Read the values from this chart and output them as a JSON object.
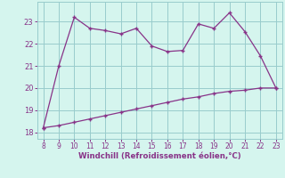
{
  "xlabel": "Windchill (Refroidissement éolien,°C)",
  "x_upper": [
    8,
    9,
    10,
    11,
    12,
    13,
    14,
    15,
    16,
    17,
    18,
    19,
    20,
    21,
    22,
    23
  ],
  "y_upper": [
    18.2,
    21.0,
    23.2,
    22.7,
    22.6,
    22.45,
    22.7,
    21.9,
    21.65,
    21.7,
    22.9,
    22.7,
    23.4,
    22.55,
    21.45,
    20.0
  ],
  "x_lower": [
    8,
    9,
    10,
    11,
    12,
    13,
    14,
    15,
    16,
    17,
    18,
    19,
    20,
    21,
    22,
    23
  ],
  "y_lower": [
    18.2,
    18.3,
    18.45,
    18.6,
    18.75,
    18.9,
    19.05,
    19.2,
    19.35,
    19.5,
    19.6,
    19.75,
    19.85,
    19.9,
    20.0,
    20.0
  ],
  "line_color": "#883388",
  "bg_color": "#d5f5ee",
  "grid_color": "#99cccc",
  "axis_label_color": "#883388",
  "tick_color": "#883388",
  "ylim": [
    17.7,
    23.9
  ],
  "xlim": [
    7.6,
    23.4
  ],
  "yticks": [
    18,
    19,
    20,
    21,
    22,
    23
  ],
  "xticks": [
    8,
    9,
    10,
    11,
    12,
    13,
    14,
    15,
    16,
    17,
    18,
    19,
    20,
    21,
    22,
    23
  ]
}
